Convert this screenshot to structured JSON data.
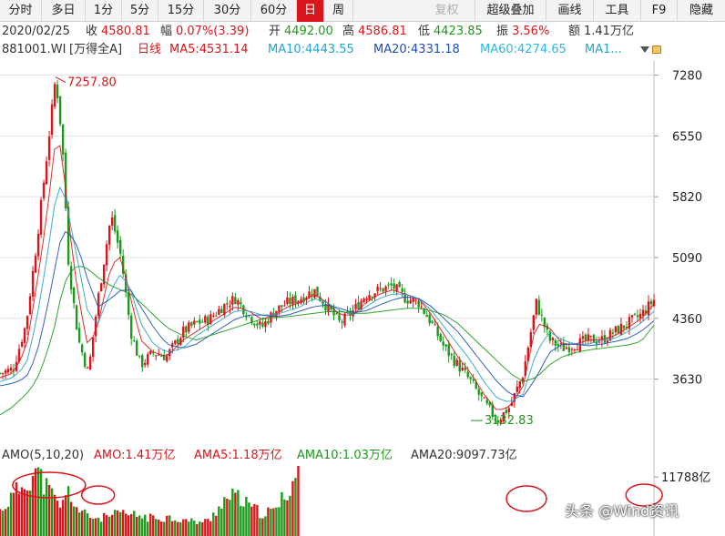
{
  "toolbar": {
    "periods": [
      "分时",
      "多日",
      "1分",
      "5分",
      "15分",
      "30分",
      "60分",
      "日",
      "周"
    ],
    "active_period": "日",
    "right_items": [
      "复权",
      "超级叠加",
      "画线",
      "工具",
      "F9",
      "隐藏"
    ]
  },
  "info": {
    "date": "2020/02/25",
    "close_label": "收",
    "close_value": "4580.81",
    "change_label": "幅",
    "change_value": "0.07%(3.39)",
    "open_label": "开",
    "open_value": "4492.00",
    "high_label": "高",
    "high_value": "4586.81",
    "low_label": "低",
    "low_value": "4423.85",
    "amplitude_label": "振",
    "amplitude_value": "3.56%",
    "amount_label": "额",
    "amount_value": "1.41万亿"
  },
  "ma_bar": {
    "code": "881001.WI",
    "name": "[万得全A]",
    "period": "日线",
    "ma5": "MA5:4531.14",
    "ma10": "MA10:4443.55",
    "ma20": "MA20:4331.18",
    "ma60": "MA60:4274.65",
    "ma_more": "MA1..."
  },
  "volume_bar": {
    "title": "AMO(5,10,20)",
    "amo": "AMO:1.41万亿",
    "ama5": "AMA5:1.18万亿",
    "ama10": "AMA10:1.03万亿",
    "ama20": "AMA20:9097.73亿",
    "axis_label": "11788亿"
  },
  "watermark": "头条 @Wind资讯",
  "colors": {
    "up": "#d9161c",
    "down": "#1b9a1b",
    "ma5": "#d9161c",
    "ma10": "#2ba3c8",
    "ma20": "#1f4fb4",
    "ma60": "#1b9a1b",
    "active_tab": "#d9161c"
  },
  "chart_data": {
    "type": "line",
    "title": "",
    "xlabel": "",
    "ylabel": "",
    "ylim": [
      2850,
      7450
    ],
    "yticks": [
      3630,
      4360,
      5090,
      5820,
      6550,
      7280
    ],
    "annotations": [
      {
        "label": "7257.80",
        "x": 0.085,
        "y": 7257.8
      },
      {
        "label": "3132.83",
        "x": 0.72,
        "y": 3132.83
      }
    ],
    "x_fraction": [
      0.0,
      0.02,
      0.04,
      0.055,
      0.07,
      0.085,
      0.095,
      0.105,
      0.12,
      0.135,
      0.15,
      0.17,
      0.185,
      0.2,
      0.215,
      0.235,
      0.255,
      0.28,
      0.3,
      0.32,
      0.34,
      0.36,
      0.38,
      0.4,
      0.42,
      0.44,
      0.46,
      0.48,
      0.5,
      0.52,
      0.54,
      0.56,
      0.58,
      0.6,
      0.62,
      0.64,
      0.66,
      0.68,
      0.7,
      0.72,
      0.74,
      0.76,
      0.78,
      0.8,
      0.82,
      0.84,
      0.86,
      0.88,
      0.9,
      0.92,
      0.94,
      0.96,
      0.98,
      1.0
    ],
    "series": [
      {
        "values": [
          3700,
          3750,
          4300,
          5200,
          6200,
          7258,
          6500,
          5000,
          4100,
          3700,
          4600,
          5600,
          5100,
          4200,
          3800,
          3950,
          3900,
          4200,
          4300,
          4350,
          4500,
          4600,
          4400,
          4250,
          4450,
          4550,
          4600,
          4700,
          4500,
          4300,
          4450,
          4650,
          4700,
          4750,
          4600,
          4550,
          4300,
          4000,
          3800,
          3600,
          3350,
          3133,
          3300,
          3700,
          4550,
          4100,
          4000,
          4050,
          4100,
          4100,
          4200,
          4300,
          4400,
          4581
        ]
      },
      {
        "values": [
          3650,
          3700,
          4000,
          4700,
          5500,
          6500,
          6400,
          5500,
          4600,
          4000,
          4300,
          5000,
          5100,
          4600,
          4100,
          3950,
          3900,
          4100,
          4200,
          4300,
          4400,
          4500,
          4450,
          4350,
          4400,
          4500,
          4550,
          4650,
          4550,
          4400,
          4400,
          4550,
          4650,
          4700,
          4650,
          4600,
          4400,
          4150,
          3900,
          3700,
          3450,
          3250,
          3300,
          3550,
          4300,
          4250,
          4050,
          4050,
          4100,
          4100,
          4150,
          4250,
          4350,
          4531
        ]
      },
      {
        "values": [
          3600,
          3650,
          3800,
          4300,
          5000,
          5800,
          6000,
          5600,
          5000,
          4400,
          4300,
          4700,
          4900,
          4700,
          4300,
          4050,
          3950,
          4000,
          4150,
          4250,
          4350,
          4450,
          4450,
          4400,
          4400,
          4450,
          4500,
          4600,
          4550,
          4450,
          4400,
          4500,
          4600,
          4650,
          4650,
          4600,
          4450,
          4250,
          4050,
          3850,
          3600,
          3400,
          3350,
          3450,
          3950,
          4200,
          4100,
          4050,
          4050,
          4100,
          4120,
          4200,
          4300,
          4444
        ]
      },
      {
        "values": [
          3550,
          3580,
          3650,
          3900,
          4400,
          5000,
          5400,
          5400,
          5200,
          4800,
          4500,
          4600,
          4700,
          4700,
          4500,
          4250,
          4050,
          4000,
          4050,
          4150,
          4250,
          4350,
          4400,
          4400,
          4380,
          4400,
          4450,
          4500,
          4520,
          4480,
          4430,
          4450,
          4520,
          4580,
          4620,
          4600,
          4500,
          4350,
          4200,
          4000,
          3800,
          3600,
          3450,
          3420,
          3650,
          3950,
          4050,
          4050,
          4030,
          4050,
          4080,
          4120,
          4200,
          4331
        ]
      },
      {
        "values": [
          3200,
          3300,
          3450,
          3600,
          3900,
          4300,
          4700,
          4900,
          5000,
          4950,
          4850,
          4750,
          4700,
          4650,
          4550,
          4400,
          4250,
          4150,
          4100,
          4150,
          4200,
          4250,
          4300,
          4350,
          4370,
          4380,
          4400,
          4420,
          4440,
          4440,
          4420,
          4420,
          4440,
          4460,
          4480,
          4480,
          4450,
          4400,
          4300,
          4150,
          4000,
          3850,
          3700,
          3600,
          3650,
          3800,
          3900,
          3950,
          3980,
          4000,
          4020,
          4040,
          4080,
          4275
        ]
      }
    ],
    "volume": {
      "note": "daily turnover (亿)",
      "ylim": [
        0,
        14000
      ],
      "yticks": [
        11788
      ],
      "x_fraction": [
        0.0,
        0.025,
        0.05,
        0.075,
        0.1,
        0.125,
        0.15,
        0.175,
        0.2,
        0.25,
        0.3,
        0.35,
        0.4,
        0.45,
        0.5,
        0.55,
        0.6,
        0.65,
        0.7,
        0.75,
        0.8,
        0.82,
        0.85,
        0.9,
        0.95,
        0.98,
        1.0
      ],
      "values": [
        5000,
        8000,
        11000,
        13000,
        10000,
        7000,
        6000,
        9000,
        5000,
        4000,
        3500,
        4000,
        4500,
        4200,
        4000,
        3500,
        3800,
        3200,
        2800,
        3000,
        7000,
        8000,
        6000,
        4500,
        5000,
        9000,
        14100
      ]
    }
  }
}
